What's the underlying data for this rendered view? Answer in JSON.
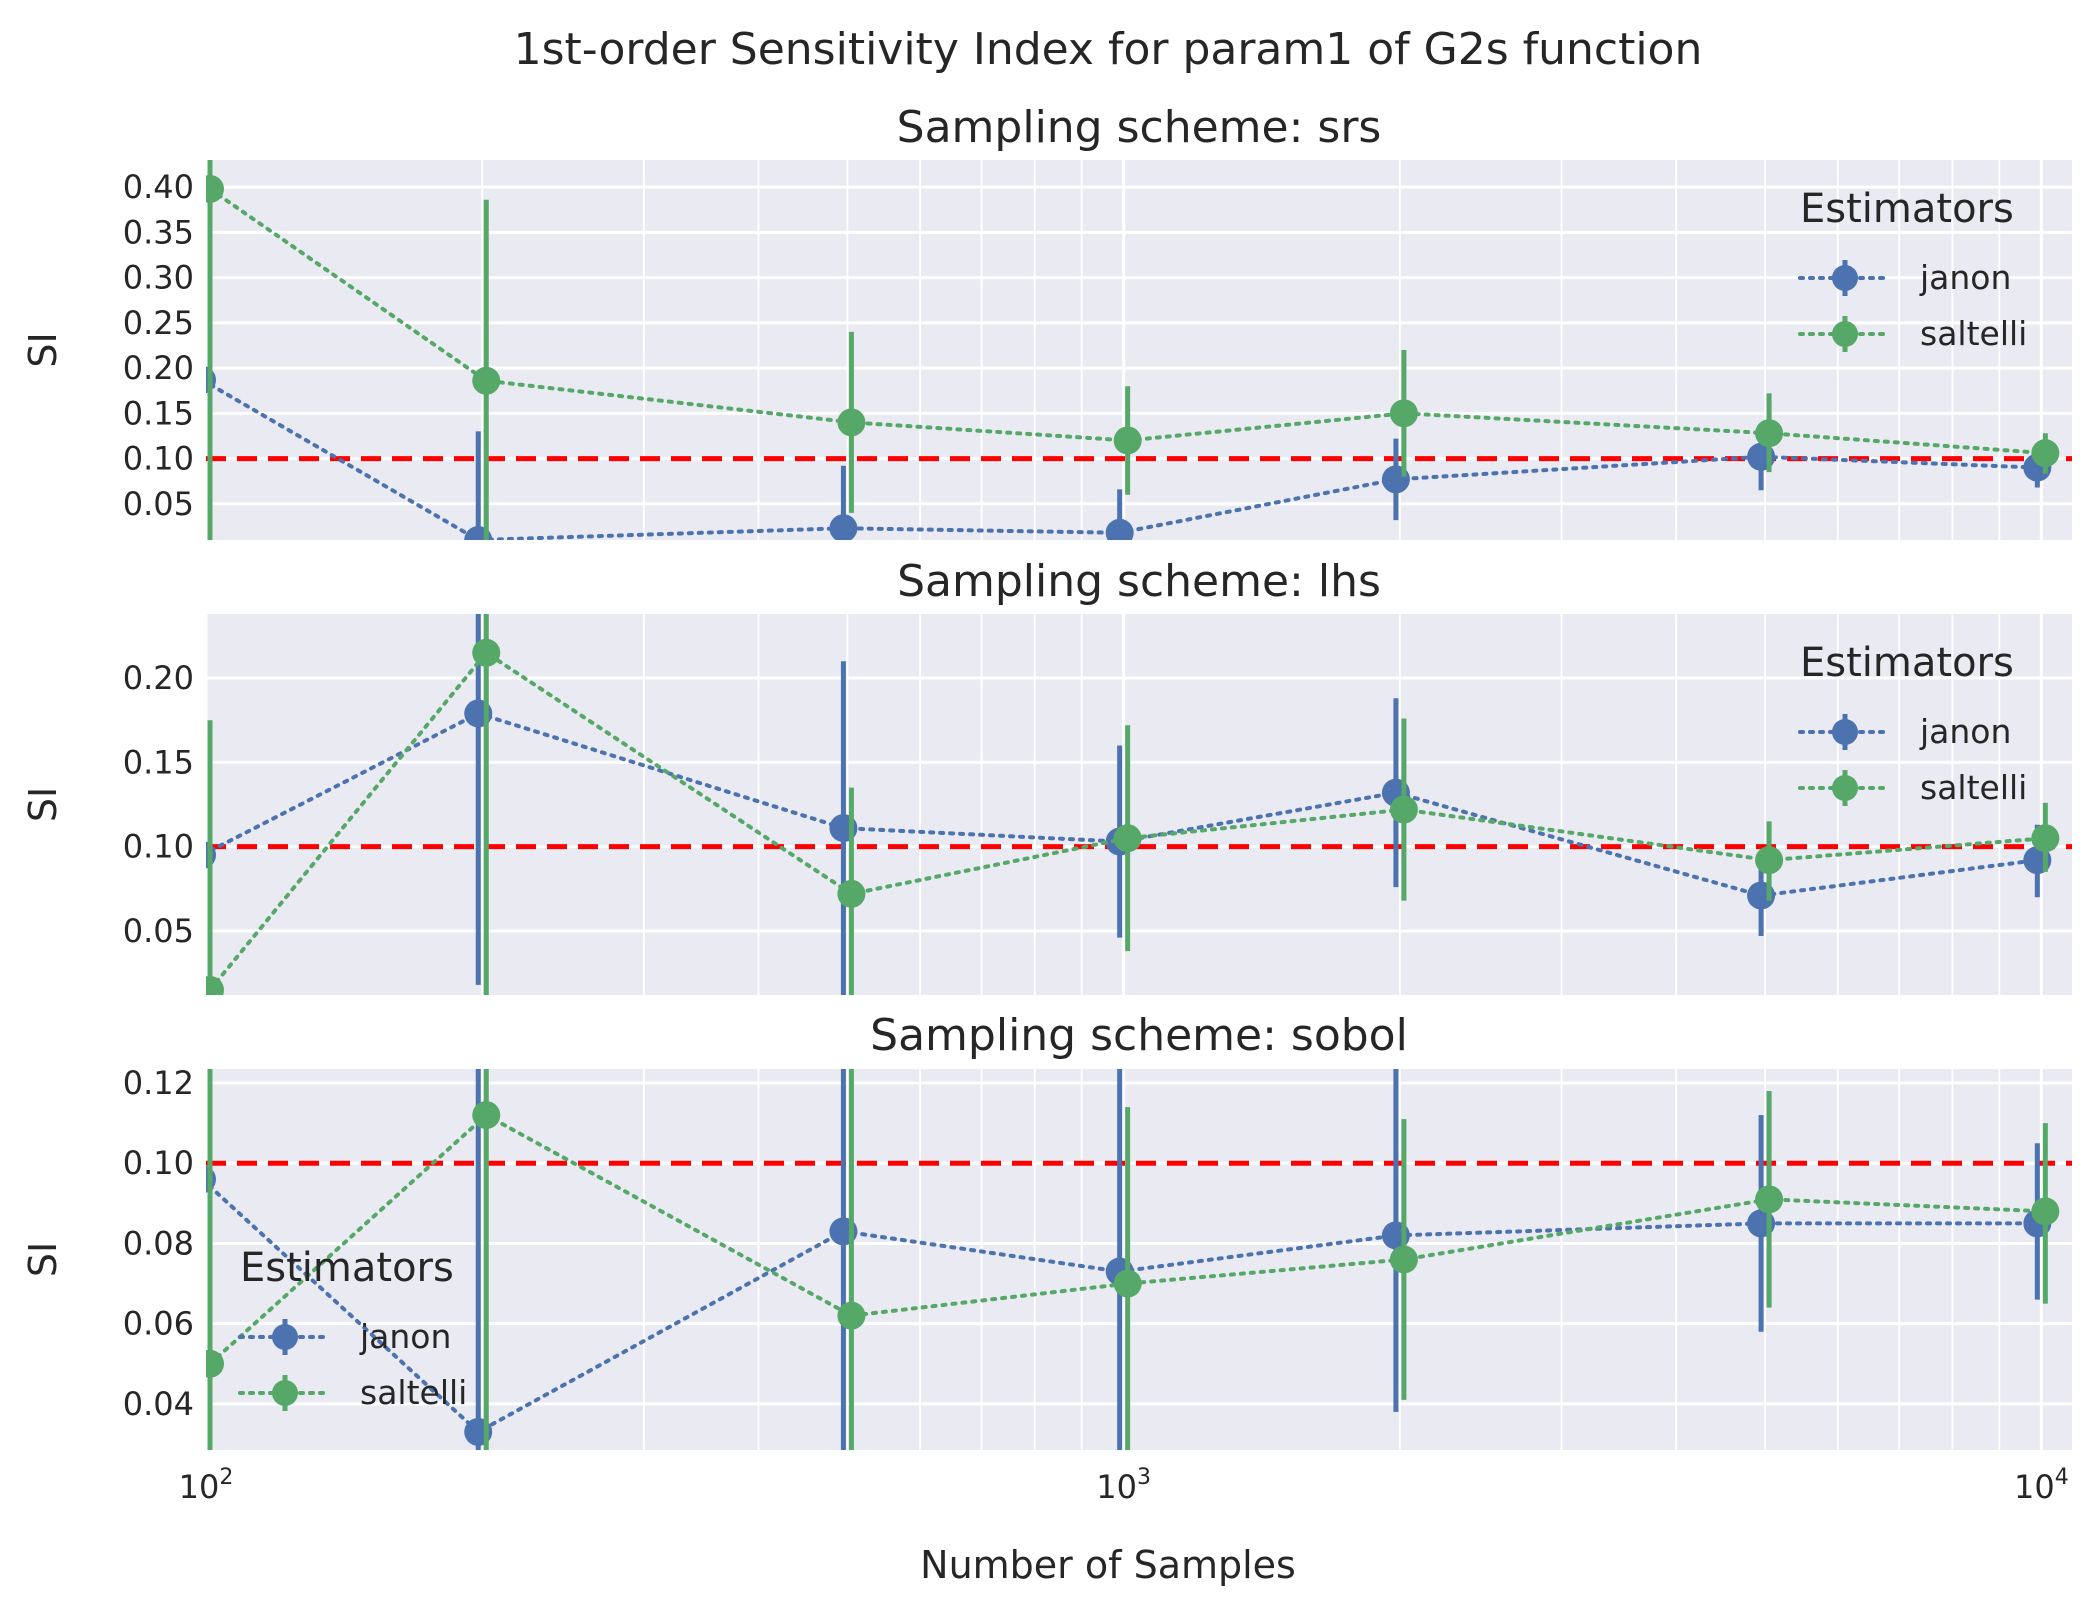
{
  "suptitle": "1st-order Sensitivity Index for param1 of G2s function",
  "chart_data": {
    "type": "line",
    "title": "1st-order Sensitivity Index for param1 of G2s function",
    "xlabel": "Number of Samples",
    "x_scale": "log",
    "xlim": [
      100,
      10800
    ],
    "x_ticks": [
      "10^2",
      "10^3",
      "10^4"
    ],
    "grid": true,
    "reference_line": {
      "y": 0.1,
      "color": "#ff0000",
      "style": "dashed"
    },
    "colors": {
      "janon": "#4c72b0",
      "saltelli": "#55a868",
      "reference": "#ff0000",
      "background": "#eaeaf2"
    },
    "panels": [
      {
        "title": "Sampling scheme: srs",
        "ylabel": "SI",
        "ylim": [
          0.01,
          0.43
        ],
        "yticks": [
          "0.05",
          "0.10",
          "0.15",
          "0.20",
          "0.25",
          "0.30",
          "0.35",
          "0.40"
        ],
        "legend_title": "Estimators",
        "legend_position": "right",
        "series": [
          {
            "name": "janon",
            "points": [
              {
                "x": 100,
                "y": 0.187,
                "lo": 0.03,
                "hi": 0.34
              },
              {
                "x": 200,
                "y": 0.01,
                "lo": -0.11,
                "hi": 0.13
              },
              {
                "x": 500,
                "y": 0.023,
                "lo": -0.04,
                "hi": 0.092
              },
              {
                "x": 1000,
                "y": 0.018,
                "lo": -0.03,
                "hi": 0.066
              },
              {
                "x": 2000,
                "y": 0.077,
                "lo": 0.032,
                "hi": 0.122
              },
              {
                "x": 5000,
                "y": 0.102,
                "lo": 0.065,
                "hi": 0.138
              },
              {
                "x": 10000,
                "y": 0.09,
                "lo": 0.068,
                "hi": 0.112
              }
            ]
          },
          {
            "name": "saltelli",
            "points": [
              {
                "x": 100,
                "y": 0.398,
                "lo": 0.0,
                "hi": 0.45
              },
              {
                "x": 200,
                "y": 0.186,
                "lo": 0.0,
                "hi": 0.386
              },
              {
                "x": 500,
                "y": 0.14,
                "lo": 0.04,
                "hi": 0.24
              },
              {
                "x": 1000,
                "y": 0.12,
                "lo": 0.06,
                "hi": 0.18
              },
              {
                "x": 2000,
                "y": 0.15,
                "lo": 0.08,
                "hi": 0.22
              },
              {
                "x": 5000,
                "y": 0.128,
                "lo": 0.085,
                "hi": 0.172
              },
              {
                "x": 10000,
                "y": 0.106,
                "lo": 0.083,
                "hi": 0.128
              }
            ]
          }
        ]
      },
      {
        "title": "Sampling scheme: lhs",
        "ylabel": "SI",
        "ylim": [
          0.012,
          0.238
        ],
        "yticks": [
          "0.05",
          "0.10",
          "0.15",
          "0.20"
        ],
        "legend_title": "Estimators",
        "legend_position": "right",
        "series": [
          {
            "name": "janon",
            "points": [
              {
                "x": 100,
                "y": 0.095,
                "lo": -0.05,
                "hi": 0.238
              },
              {
                "x": 200,
                "y": 0.179,
                "lo": 0.018,
                "hi": 0.3
              },
              {
                "x": 500,
                "y": 0.111,
                "lo": 0.012,
                "hi": 0.21
              },
              {
                "x": 1000,
                "y": 0.103,
                "lo": 0.046,
                "hi": 0.16
              },
              {
                "x": 2000,
                "y": 0.132,
                "lo": 0.076,
                "hi": 0.188
              },
              {
                "x": 5000,
                "y": 0.071,
                "lo": 0.047,
                "hi": 0.095
              },
              {
                "x": 10000,
                "y": 0.092,
                "lo": 0.07,
                "hi": 0.113
              }
            ]
          },
          {
            "name": "saltelli",
            "points": [
              {
                "x": 100,
                "y": 0.015,
                "lo": -0.15,
                "hi": 0.175
              },
              {
                "x": 200,
                "y": 0.215,
                "lo": 0.0,
                "hi": 0.3
              },
              {
                "x": 500,
                "y": 0.072,
                "lo": 0.008,
                "hi": 0.135
              },
              {
                "x": 1000,
                "y": 0.105,
                "lo": 0.038,
                "hi": 0.172
              },
              {
                "x": 2000,
                "y": 0.122,
                "lo": 0.068,
                "hi": 0.176
              },
              {
                "x": 5000,
                "y": 0.092,
                "lo": 0.068,
                "hi": 0.115
              },
              {
                "x": 10000,
                "y": 0.105,
                "lo": 0.085,
                "hi": 0.126
              }
            ]
          }
        ]
      },
      {
        "title": "Sampling scheme: sobol",
        "ylabel": "SI",
        "ylim": [
          0.0285,
          0.1235
        ],
        "yticks": [
          "0.04",
          "0.06",
          "0.08",
          "0.10",
          "0.12"
        ],
        "legend_title": "Estimators",
        "legend_position": "lower left",
        "series": [
          {
            "name": "janon",
            "points": [
              {
                "x": 100,
                "y": 0.096,
                "lo": 0.0,
                "hi": 0.14
              },
              {
                "x": 200,
                "y": 0.033,
                "lo": 0.0,
                "hi": 0.14
              },
              {
                "x": 500,
                "y": 0.083,
                "lo": 0.0,
                "hi": 0.14
              },
              {
                "x": 1000,
                "y": 0.073,
                "lo": 0.0,
                "hi": 0.14
              },
              {
                "x": 2000,
                "y": 0.082,
                "lo": 0.038,
                "hi": 0.126
              },
              {
                "x": 5000,
                "y": 0.085,
                "lo": 0.058,
                "hi": 0.112
              },
              {
                "x": 10000,
                "y": 0.085,
                "lo": 0.066,
                "hi": 0.105
              }
            ]
          },
          {
            "name": "saltelli",
            "points": [
              {
                "x": 100,
                "y": 0.05,
                "lo": 0.0,
                "hi": 0.14
              },
              {
                "x": 200,
                "y": 0.112,
                "lo": 0.0,
                "hi": 0.14
              },
              {
                "x": 500,
                "y": 0.062,
                "lo": 0.0,
                "hi": 0.14
              },
              {
                "x": 1000,
                "y": 0.07,
                "lo": 0.026,
                "hi": 0.114
              },
              {
                "x": 2000,
                "y": 0.076,
                "lo": 0.041,
                "hi": 0.111
              },
              {
                "x": 5000,
                "y": 0.091,
                "lo": 0.064,
                "hi": 0.118
              },
              {
                "x": 10000,
                "y": 0.088,
                "lo": 0.065,
                "hi": 0.11
              }
            ]
          }
        ]
      }
    ]
  }
}
